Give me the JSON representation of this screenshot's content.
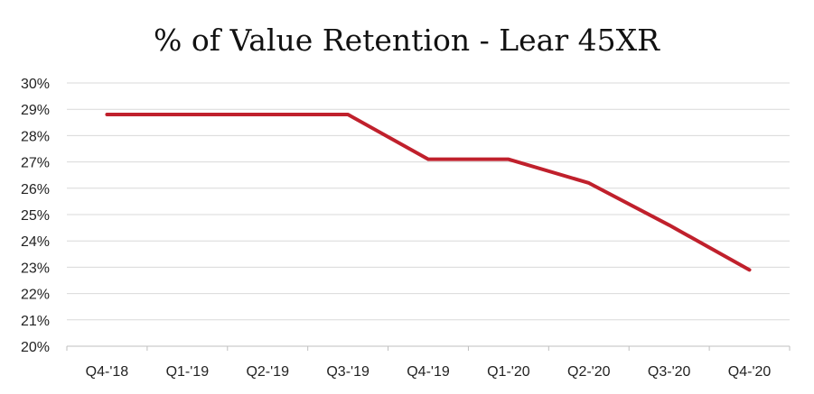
{
  "chart_data": {
    "type": "line",
    "title": "% of Value Retention - Lear 45XR",
    "xlabel": "",
    "ylabel": "",
    "categories": [
      "Q4-'18",
      "Q1-'19",
      "Q2-'19",
      "Q3-'19",
      "Q4-'19",
      "Q1-'20",
      "Q2-'20",
      "Q3-'20",
      "Q4-'20"
    ],
    "series": [
      {
        "values": [
          28.8,
          28.8,
          28.8,
          28.8,
          27.1,
          27.1,
          26.2,
          24.6,
          22.9
        ],
        "color": "#c0202c"
      }
    ],
    "ylim": [
      20,
      30
    ],
    "yticks": [
      20,
      21,
      22,
      23,
      24,
      25,
      26,
      27,
      28,
      29,
      30
    ],
    "ytick_labels": [
      "20%",
      "21%",
      "22%",
      "23%",
      "24%",
      "25%",
      "26%",
      "27%",
      "28%",
      "29%",
      "30%"
    ],
    "grid": true,
    "legend": "none"
  }
}
